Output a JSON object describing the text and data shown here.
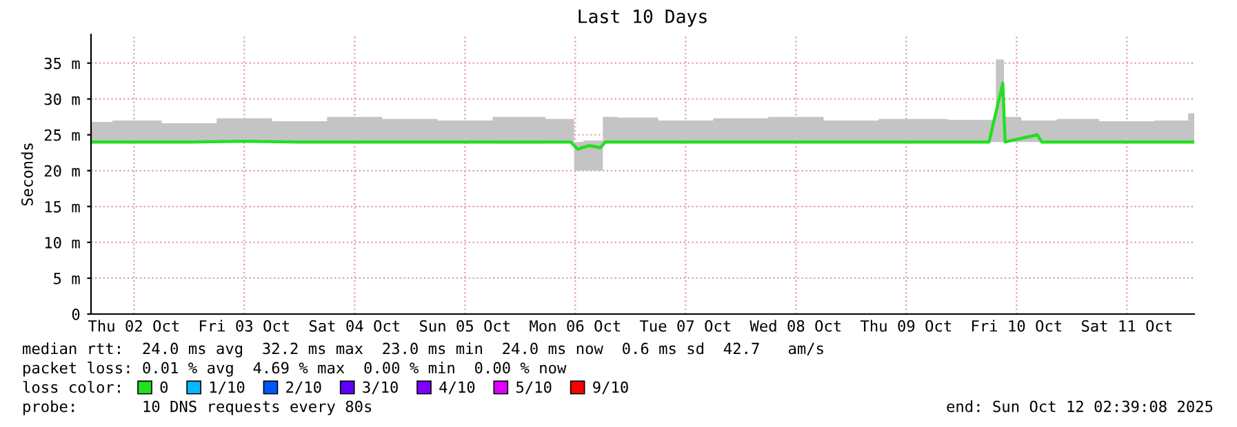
{
  "chart_data": {
    "type": "line",
    "title": "Last 10 Days",
    "ylabel": "Seconds",
    "x": [
      "2025-10-02T02:39",
      "2025-10-02T12:00",
      "2025-10-03T00:00",
      "2025-10-03T12:00",
      "2025-10-04T00:00",
      "2025-10-04T12:00",
      "2025-10-05T00:00",
      "2025-10-05T12:00",
      "2025-10-06T00:00",
      "2025-10-06T11:00",
      "2025-10-06T12:30",
      "2025-10-06T15:00",
      "2025-10-06T17:30",
      "2025-10-06T18:30",
      "2025-10-07T00:00",
      "2025-10-07T12:00",
      "2025-10-08T00:00",
      "2025-10-08T12:00",
      "2025-10-09T00:00",
      "2025-10-09T12:00",
      "2025-10-10T06:00",
      "2025-10-10T09:00",
      "2025-10-10T09:30",
      "2025-10-10T16:30",
      "2025-10-10T17:30",
      "2025-10-11T00:00",
      "2025-10-11T12:00",
      "2025-10-12T00:00",
      "2025-10-12T02:39"
    ],
    "series": [
      {
        "name": "0",
        "color": "#20e020",
        "values": [
          24,
          24,
          24,
          24.1,
          24,
          24,
          24,
          24,
          24,
          24,
          23,
          23.5,
          23.2,
          24,
          24,
          24,
          24,
          24,
          24,
          24,
          24,
          32.2,
          24,
          25,
          24,
          24,
          24,
          24,
          24
        ],
        "lower": [
          24,
          24,
          24,
          24,
          24,
          24,
          24,
          24,
          23.8,
          24,
          20,
          20,
          20,
          24,
          24,
          24,
          24,
          24,
          24,
          24,
          24,
          24,
          24,
          24,
          24,
          24,
          24,
          24,
          24
        ],
        "upper": [
          26.8,
          27,
          26.6,
          27.3,
          26.9,
          27.5,
          27.2,
          27,
          27.5,
          27.2,
          24,
          24.2,
          24.2,
          27.5,
          27.4,
          27,
          27.3,
          27.5,
          27,
          27.2,
          27.1,
          35.5,
          27.5,
          27,
          27,
          27.2,
          26.9,
          27,
          28
        ]
      },
      {
        "name": "1/10",
        "color": "#00b8ff",
        "values": [
          null,
          null,
          null,
          null,
          null,
          null,
          null,
          null,
          null,
          null,
          null,
          null,
          null,
          null,
          null,
          null,
          null,
          null,
          null,
          null,
          null,
          null,
          null,
          null,
          null,
          null,
          null,
          null,
          null
        ]
      },
      {
        "name": "2/10",
        "color": "#0059ff",
        "values": [
          null,
          null,
          null,
          null,
          null,
          null,
          null,
          null,
          null,
          null,
          null,
          null,
          null,
          null,
          null,
          null,
          null,
          null,
          null,
          null,
          null,
          null,
          null,
          null,
          null,
          null,
          null,
          null,
          null
        ]
      },
      {
        "name": "3/10",
        "color": "#5e00ff",
        "values": [
          null,
          null,
          null,
          null,
          null,
          null,
          null,
          null,
          null,
          null,
          null,
          null,
          null,
          null,
          null,
          null,
          null,
          null,
          null,
          null,
          null,
          null,
          null,
          null,
          null,
          null,
          null,
          null,
          null
        ]
      },
      {
        "name": "4/10",
        "color": "#7e00ff",
        "values": [
          null,
          null,
          null,
          null,
          null,
          null,
          null,
          null,
          null,
          null,
          null,
          null,
          null,
          null,
          null,
          null,
          null,
          null,
          null,
          null,
          null,
          null,
          null,
          null,
          null,
          null,
          null,
          null,
          null
        ]
      },
      {
        "name": "5/10",
        "color": "#dd00ff",
        "values": [
          null,
          null,
          null,
          null,
          null,
          null,
          null,
          null,
          null,
          null,
          null,
          null,
          null,
          null,
          null,
          null,
          null,
          null,
          null,
          null,
          null,
          null,
          null,
          null,
          null,
          null,
          null,
          null,
          null
        ]
      },
      {
        "name": "9/10",
        "color": "#ff0000",
        "values": [
          null,
          null,
          null,
          null,
          null,
          null,
          null,
          null,
          null,
          null,
          null,
          null,
          null,
          null,
          null,
          null,
          null,
          null,
          null,
          null,
          null,
          null,
          null,
          null,
          null,
          null,
          null,
          null,
          null
        ]
      }
    ],
    "legend_title": "loss color:",
    "legend": "bottom",
    "xlim": [
      "2025-10-02T02:39",
      "2025-10-12T02:39"
    ],
    "xticks": [
      {
        "value": "2025-10-02T12:00",
        "label": "Thu 02 Oct"
      },
      {
        "value": "2025-10-03T12:00",
        "label": "Fri 03 Oct"
      },
      {
        "value": "2025-10-04T12:00",
        "label": "Sat 04 Oct"
      },
      {
        "value": "2025-10-05T12:00",
        "label": "Sun 05 Oct"
      },
      {
        "value": "2025-10-06T12:00",
        "label": "Mon 06 Oct"
      },
      {
        "value": "2025-10-07T12:00",
        "label": "Tue 07 Oct"
      },
      {
        "value": "2025-10-08T12:00",
        "label": "Wed 08 Oct"
      },
      {
        "value": "2025-10-09T12:00",
        "label": "Thu 09 Oct"
      },
      {
        "value": "2025-10-10T12:00",
        "label": "Fri 10 Oct"
      },
      {
        "value": "2025-10-11T12:00",
        "label": "Sat 11 Oct"
      }
    ],
    "ylim": [
      0,
      39
    ],
    "yticks": [
      0,
      {
        "value": 5,
        "label": "5 m"
      },
      {
        "value": 10,
        "label": "10 m"
      },
      {
        "value": 15,
        "label": "15 m"
      },
      {
        "value": 20,
        "label": "20 m"
      },
      {
        "value": 25,
        "label": "25 m"
      },
      {
        "value": 30,
        "label": "30 m"
      },
      {
        "value": 35,
        "label": "35 m"
      }
    ],
    "grid": true,
    "marker": "none",
    "line_style": "solid",
    "annotations": [
      "median rtt:  24.0 ms avg  32.2 ms max  23.0 ms min  24.0 ms now  0.6 ms sd  42.7   am/s",
      "packet loss: 0.01 % avg  4.69 % max  0.00 % min  0.00 % now",
      "probe:       10 DNS requests every 80s",
      "end: Sun Oct 12 02:39:08 2025"
    ]
  }
}
